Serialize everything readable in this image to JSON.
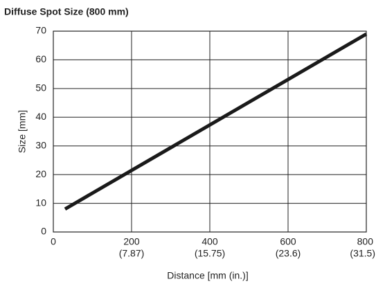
{
  "chart_data": {
    "type": "line",
    "title": "Diffuse Spot Size (800 mm)",
    "x_label": "Distance [mm (in.)]",
    "y_label": "Size [mm]",
    "series": [
      {
        "color": "#1a1a1a",
        "x": [
          30,
          800
        ],
        "values": [
          8,
          69
        ]
      }
    ],
    "xlim": [
      0,
      800
    ],
    "xticks": [
      0,
      {
        "value": 200,
        "label": "200",
        "sublabel": "(7.87)"
      },
      {
        "value": 400,
        "label": "400",
        "sublabel": "(15.75)"
      },
      {
        "value": 600,
        "label": "600",
        "sublabel": "(23.6)"
      },
      {
        "value": 800,
        "label": "800",
        "sublabel": "(31.5)"
      }
    ],
    "ylim": [
      0,
      70
    ],
    "yticks": [
      0,
      10,
      20,
      30,
      40,
      50,
      60,
      70
    ],
    "grid": true
  }
}
